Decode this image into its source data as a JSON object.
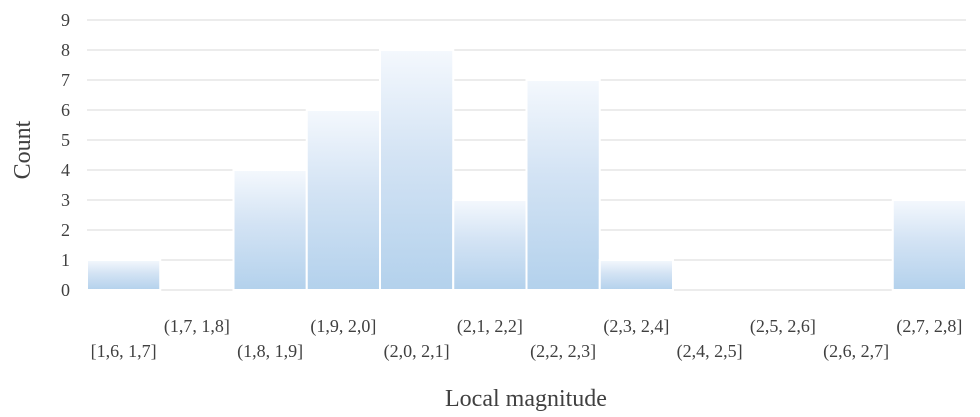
{
  "chart_data": {
    "type": "bar",
    "title": "",
    "xlabel": "Local magnitude",
    "ylabel": "Count",
    "ylim": [
      0,
      9
    ],
    "yticks": [
      "0",
      "1",
      "2",
      "3",
      "4",
      "5",
      "6",
      "7",
      "8",
      "9"
    ],
    "grid": true,
    "legend": "none",
    "categories": [
      "[1,6, 1,7]",
      "(1,7, 1,8]",
      "(1,8, 1,9]",
      "(1,9, 2,0]",
      "(2,0, 2,1]",
      "(2,1, 2,2]",
      "(2,2, 2,3]",
      "(2,3, 2,4]",
      "(2,4, 2,5]",
      "(2,5, 2,6]",
      "(2,6, 2,7]",
      "(2,7, 2,8]"
    ],
    "values": [
      1,
      0,
      4,
      6,
      8,
      3,
      7,
      1,
      0,
      0,
      0,
      3
    ],
    "colors": {
      "bar_top": "#f4f8fd",
      "bar_bottom": "#b3d1ec",
      "grid": "#d9d9d9",
      "text": "#404040"
    }
  }
}
